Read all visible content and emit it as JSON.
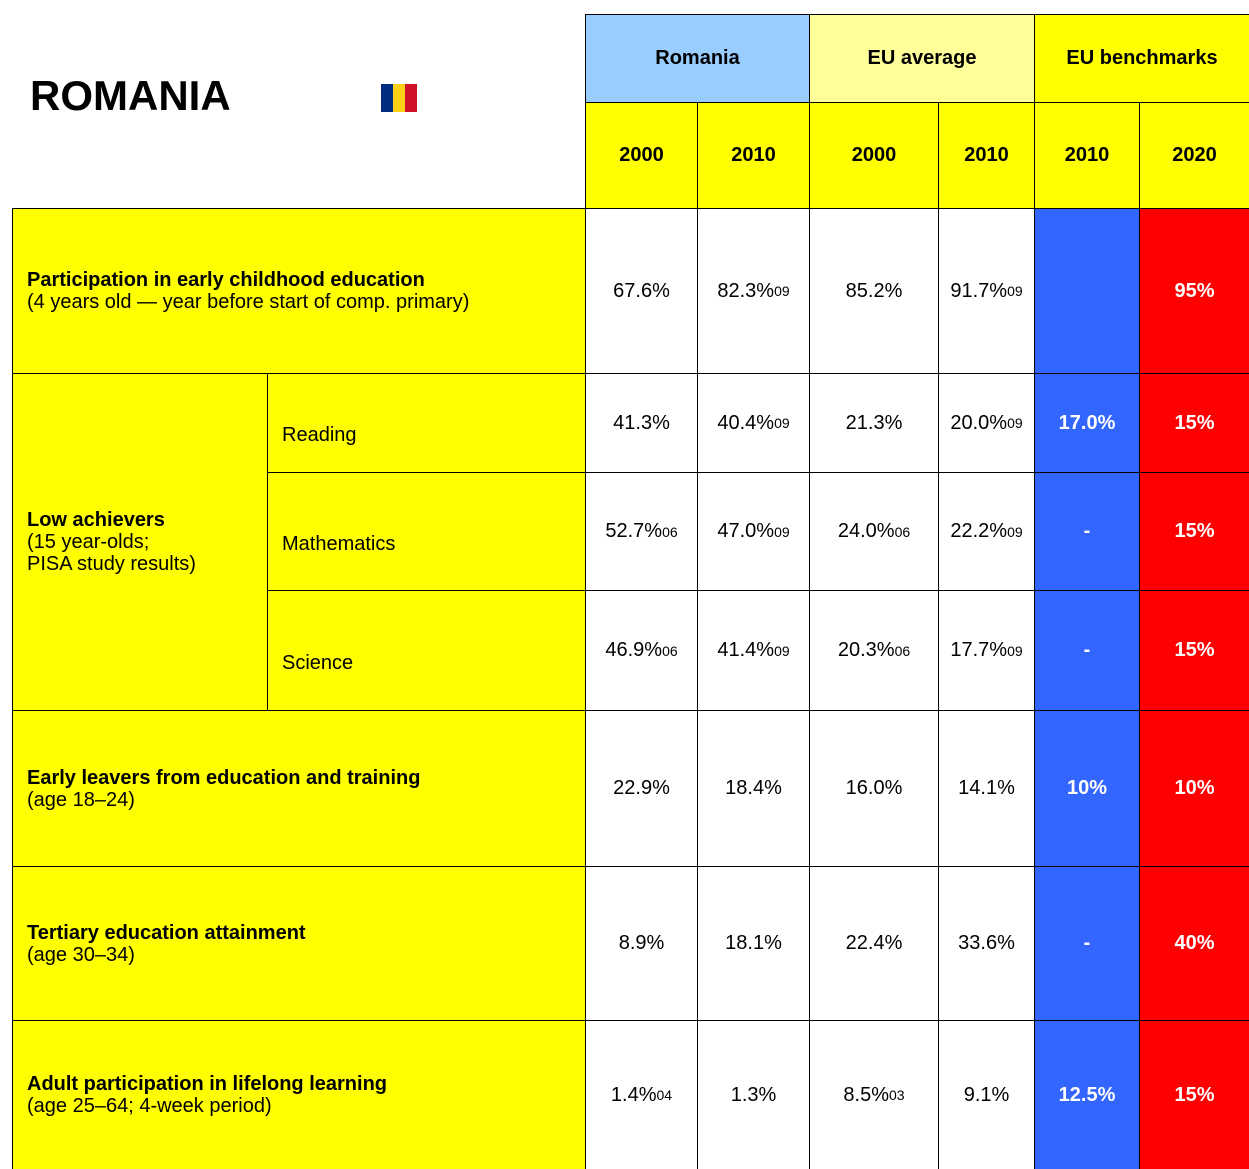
{
  "title": "ROMANIA",
  "header": {
    "groups": [
      "Romania",
      "EU average",
      "EU benchmarks"
    ],
    "years": [
      "2000",
      "2010",
      "2000",
      "2010",
      "2010",
      "2020"
    ]
  },
  "rows": [
    {
      "label": "Participation in early childhood education",
      "note": "(4 years old — year before start of comp. primary)",
      "cells": [
        {
          "value": "67.6%"
        },
        {
          "value": "82.3%",
          "sup": "09"
        },
        {
          "value": "85.2%"
        },
        {
          "value": "91.7%",
          "sup": "09"
        },
        null,
        {
          "value": "95%"
        }
      ]
    },
    {
      "label": "Low achievers",
      "note_lines": [
        "(15 year-olds;",
        "PISA study results)"
      ],
      "subrows": [
        {
          "label": "Reading",
          "cells": [
            {
              "value": "41.3%"
            },
            {
              "value": "40.4%",
              "sup": "09"
            },
            {
              "value": "21.3%"
            },
            {
              "value": "20.0%",
              "sup": "09"
            },
            {
              "value": "17.0%"
            },
            {
              "value": "15%"
            }
          ]
        },
        {
          "label": "Mathematics",
          "cells": [
            {
              "value": "52.7%",
              "sup": "06"
            },
            {
              "value": "47.0%",
              "sup": "09"
            },
            {
              "value": "24.0%",
              "sup": "06"
            },
            {
              "value": "22.2%",
              "sup": "09"
            },
            {
              "value": "-"
            },
            {
              "value": "15%"
            }
          ]
        },
        {
          "label": "Science",
          "cells": [
            {
              "value": "46.9%",
              "sup": "06"
            },
            {
              "value": "41.4%",
              "sup": "09"
            },
            {
              "value": "20.3%",
              "sup": "06"
            },
            {
              "value": "17.7%",
              "sup": "09"
            },
            {
              "value": "-"
            },
            {
              "value": "15%"
            }
          ]
        }
      ]
    },
    {
      "label": "Early leavers from education and training",
      "note": "(age 18–24)",
      "cells": [
        {
          "value": "22.9%"
        },
        {
          "value": "18.4%"
        },
        {
          "value": "16.0%"
        },
        {
          "value": "14.1%"
        },
        {
          "value": "10%"
        },
        {
          "value": "10%"
        }
      ]
    },
    {
      "label": "Tertiary education attainment",
      "note": "(age 30–34)",
      "cells": [
        {
          "value": "8.9%"
        },
        {
          "value": "18.1%"
        },
        {
          "value": "22.4%"
        },
        {
          "value": "33.6%"
        },
        {
          "value": "-"
        },
        {
          "value": "40%"
        }
      ]
    },
    {
      "label": "Adult participation in lifelong learning",
      "note": "(age 25–64; 4-week period)",
      "cells": [
        {
          "value": "1.4%",
          "sup": "04"
        },
        {
          "value": "1.3%"
        },
        {
          "value": "8.5%",
          "sup": "03"
        },
        {
          "value": "9.1%"
        },
        {
          "value": "12.5%"
        },
        {
          "value": "15%"
        }
      ]
    }
  ]
}
